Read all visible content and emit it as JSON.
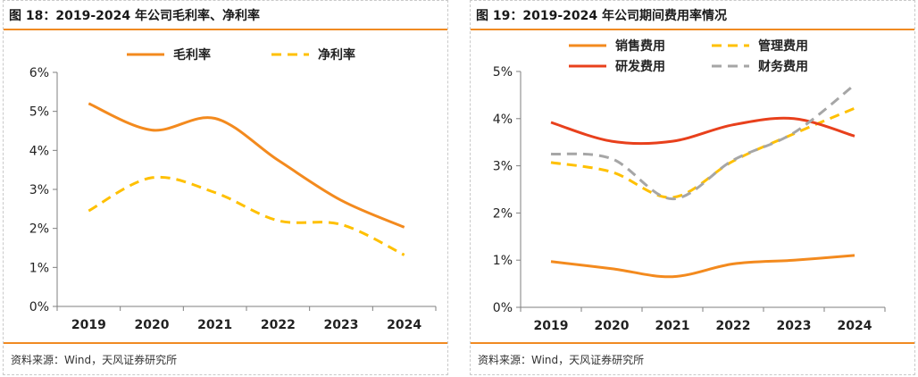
{
  "source_label": "资料来源：Wind，天风证券研究所",
  "chart_data": [
    {
      "type": "line",
      "title": "图 18：2019-2024 年公司毛利率、净利率",
      "x": [
        "2019",
        "2020",
        "2021",
        "2022",
        "2023",
        "2024"
      ],
      "ylim": [
        0,
        6
      ],
      "yticks": [
        "0%",
        "1%",
        "2%",
        "3%",
        "4%",
        "5%",
        "6%"
      ],
      "grid": false,
      "legend": "top",
      "series": [
        {
          "name": "毛利率",
          "values": [
            5.2,
            4.52,
            4.82,
            3.75,
            2.72,
            2.03
          ],
          "color": "#f38a1e",
          "dash": false
        },
        {
          "name": "净利率",
          "values": [
            2.45,
            3.3,
            2.92,
            2.2,
            2.1,
            1.32
          ],
          "color": "#ffc000",
          "dash": true
        }
      ]
    },
    {
      "type": "line",
      "title": "图 19：2019-2024 年公司期间费用率情况",
      "x": [
        "2019",
        "2020",
        "2021",
        "2022",
        "2023",
        "2024"
      ],
      "ylim": [
        0,
        5
      ],
      "yticks": [
        "0%",
        "1%",
        "2%",
        "3%",
        "4%",
        "5%"
      ],
      "grid": false,
      "legend": "top",
      "series": [
        {
          "name": "销售费用",
          "values": [
            0.97,
            0.82,
            0.65,
            0.92,
            1.0,
            1.1
          ],
          "color": "#f38a1e",
          "dash": false
        },
        {
          "name": "管理费用",
          "values": [
            3.07,
            2.87,
            2.33,
            3.1,
            3.68,
            4.22
          ],
          "color": "#ffc000",
          "dash": true
        },
        {
          "name": "研发费用",
          "values": [
            3.92,
            3.52,
            3.52,
            3.87,
            4.0,
            3.63
          ],
          "color": "#e8401c",
          "dash": false
        },
        {
          "name": "财务费用",
          "values": [
            3.25,
            3.15,
            2.3,
            3.12,
            3.7,
            4.72
          ],
          "color": "#a6a6a6",
          "dash": true
        }
      ]
    }
  ]
}
